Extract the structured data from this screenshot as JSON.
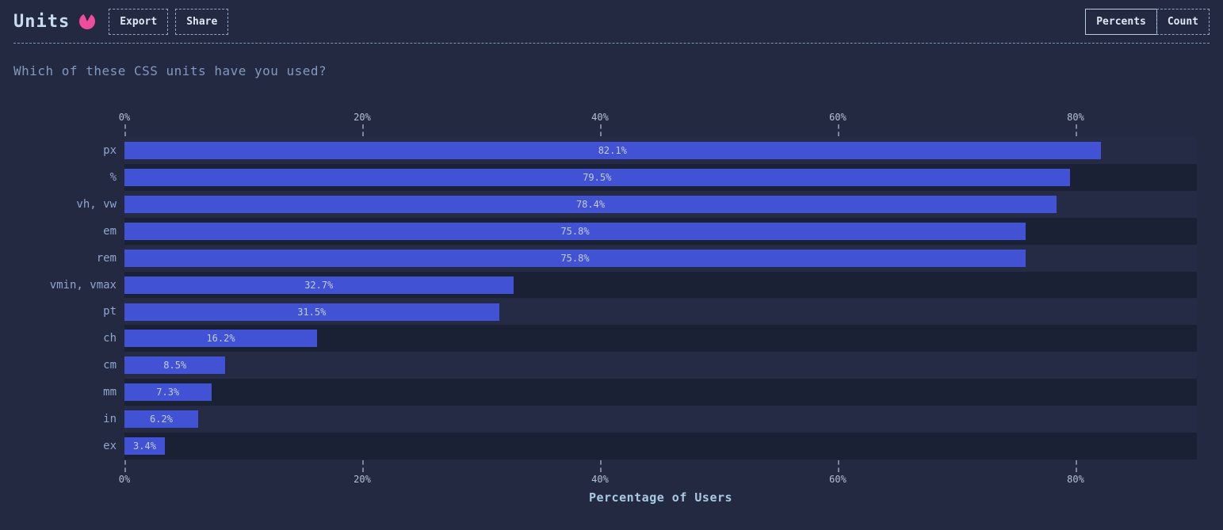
{
  "header": {
    "title": "Units",
    "export_label": "Export",
    "share_label": "Share",
    "toggle": {
      "percents_label": "Percents",
      "count_label": "Count"
    }
  },
  "icons": {
    "title_icon": "pie-chart"
  },
  "question": "Which of these CSS units have you used?",
  "chart_data": {
    "type": "bar",
    "orientation": "horizontal",
    "title": "Units",
    "xlabel": "Percentage of Users",
    "categories": [
      "px",
      "%",
      "vh, vw",
      "em",
      "rem",
      "vmin, vmax",
      "pt",
      "ch",
      "cm",
      "mm",
      "in",
      "ex"
    ],
    "values": [
      82.1,
      79.5,
      78.4,
      75.8,
      75.8,
      32.7,
      31.5,
      16.2,
      8.5,
      7.3,
      6.2,
      3.4
    ],
    "value_labels": [
      "82.1%",
      "79.5%",
      "78.4%",
      "75.8%",
      "75.8%",
      "32.7%",
      "31.5%",
      "16.2%",
      "8.5%",
      "7.3%",
      "6.2%",
      "3.4%"
    ],
    "x_tick_values": [
      0,
      20,
      40,
      60,
      80
    ],
    "x_tick_labels": [
      "0%",
      "20%",
      "40%",
      "60%",
      "80%"
    ],
    "xlim": [
      0,
      90.2
    ],
    "gridline_step": 10,
    "grid": true,
    "legend": false,
    "bar_color": "#4152d4"
  },
  "colors": {
    "background": "#232940",
    "bar": "#4152d4",
    "accent_pink": "#ee4c9c",
    "row_band_light": "#252b44",
    "row_band_dark": "#1b2134",
    "text_primary": "#dce8f4",
    "text_secondary": "#8fa6cf"
  }
}
